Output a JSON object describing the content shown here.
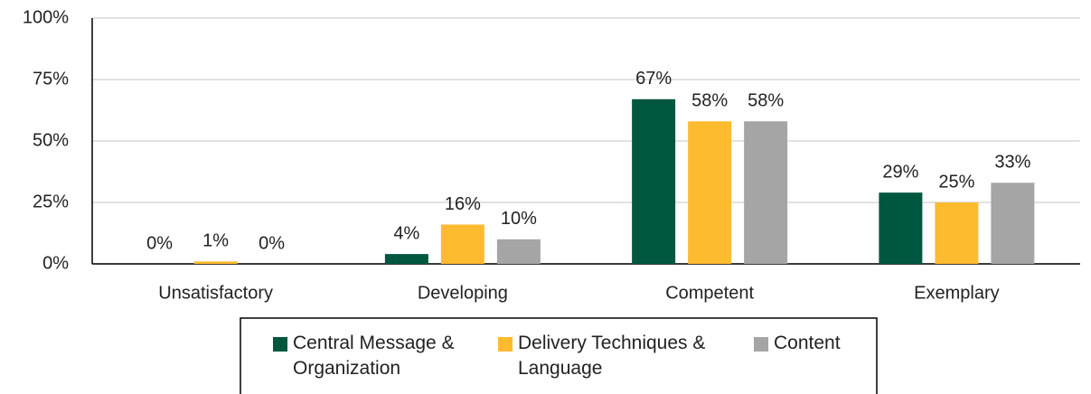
{
  "chart_data": {
    "type": "bar",
    "categories": [
      "Unsatisfactory",
      "Developing",
      "Competent",
      "Exemplary"
    ],
    "series": [
      {
        "name": "Central Message & Organization",
        "color": "#00573f",
        "values": [
          0,
          4,
          67,
          29
        ],
        "value_labels": [
          "0%",
          "4%",
          "67%",
          "29%"
        ]
      },
      {
        "name": "Delivery Techniques & Language",
        "color": "#fdbb30",
        "values": [
          1,
          16,
          58,
          25
        ],
        "value_labels": [
          "1%",
          "16%",
          "58%",
          "25%"
        ]
      },
      {
        "name": "Content",
        "color": "#a5a5a5",
        "values": [
          0,
          10,
          58,
          33
        ],
        "value_labels": [
          "0%",
          "10%",
          "58%",
          "33%"
        ]
      }
    ],
    "ylim": [
      0,
      100
    ],
    "yticks": [
      {
        "value": 0,
        "label": "0%"
      },
      {
        "value": 25,
        "label": "25%"
      },
      {
        "value": 50,
        "label": "50%"
      },
      {
        "value": 75,
        "label": "75%"
      },
      {
        "value": 100,
        "label": "100%"
      }
    ],
    "grid": true,
    "legend": "bottom"
  }
}
